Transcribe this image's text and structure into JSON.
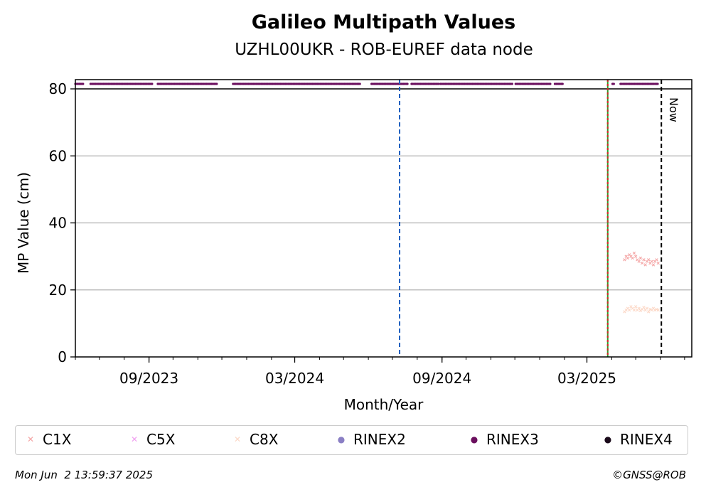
{
  "chart_data": {
    "type": "scatter",
    "title": "Galileo Multipath Values",
    "subtitle": "UZHL00UKR - ROB-EUREF data node",
    "xlabel": "Month/Year",
    "ylabel": "MP Value (cm)",
    "ylim": [
      0,
      80
    ],
    "xlim": [
      "2023-06-01",
      "2025-07-10"
    ],
    "y_ticks": [
      0,
      20,
      40,
      60,
      80
    ],
    "x_ticks": [
      {
        "date": "2023-09-01",
        "label": "09/2023"
      },
      {
        "date": "2024-03-01",
        "label": "03/2024"
      },
      {
        "date": "2024-09-01",
        "label": "09/2024"
      },
      {
        "date": "2025-03-01",
        "label": "03/2025"
      }
    ],
    "grid": "horizontal",
    "vertical_lines": [
      {
        "date": "2024-07-10",
        "style": "dashed",
        "color": "#1f5fbf"
      },
      {
        "date": "2025-03-27",
        "style": "solid",
        "color": "#2ca02c"
      },
      {
        "date": "2025-03-27",
        "style": "dotted",
        "color": "#d62728"
      },
      {
        "date": "2025-06-02",
        "style": "dashed",
        "color": "#000000",
        "label": "Now"
      }
    ],
    "rinex_band": {
      "segments": [
        {
          "start": "2023-06-01",
          "end": "2023-06-12",
          "series": "RINEX3"
        },
        {
          "start": "2023-06-20",
          "end": "2023-09-05",
          "series": "RINEX3"
        },
        {
          "start": "2023-09-12",
          "end": "2023-11-25",
          "series": "RINEX3"
        },
        {
          "start": "2023-12-15",
          "end": "2024-05-22",
          "series": "RINEX3"
        },
        {
          "start": "2024-06-05",
          "end": "2024-07-20",
          "series": "RINEX3"
        },
        {
          "start": "2024-07-25",
          "end": "2024-08-28",
          "series": "RINEX3"
        },
        {
          "start": "2024-08-30",
          "end": "2024-11-28",
          "series": "RINEX3"
        },
        {
          "start": "2024-12-02",
          "end": "2025-01-15",
          "series": "RINEX3"
        },
        {
          "start": "2025-01-20",
          "end": "2025-01-30",
          "series": "RINEX3"
        },
        {
          "start": "2025-04-02",
          "end": "2025-04-04",
          "series": "RINEX3"
        },
        {
          "start": "2025-04-12",
          "end": "2025-05-29",
          "series": "RINEX3"
        }
      ]
    },
    "series": [
      {
        "name": "C1X",
        "marker": "x",
        "color": "#f4a6a6",
        "x": [
          "2025-04-17",
          "2025-04-19",
          "2025-04-21",
          "2025-04-23",
          "2025-04-25",
          "2025-04-27",
          "2025-04-29",
          "2025-05-01",
          "2025-05-03",
          "2025-05-05",
          "2025-05-07",
          "2025-05-09",
          "2025-05-11",
          "2025-05-13",
          "2025-05-15",
          "2025-05-17",
          "2025-05-19",
          "2025-05-21",
          "2025-05-23",
          "2025-05-25",
          "2025-05-27",
          "2025-05-29"
        ],
        "y": [
          29,
          30,
          29.5,
          30.5,
          30,
          29.5,
          31,
          30,
          29,
          28.5,
          29.5,
          28,
          29,
          27.5,
          28.5,
          29,
          28,
          28.5,
          27.5,
          28.5,
          29,
          28
        ]
      },
      {
        "name": "C5X",
        "marker": "x",
        "color": "#f0a0f0",
        "x": [],
        "y": []
      },
      {
        "name": "C8X",
        "marker": "x",
        "color": "#fcd9c8",
        "x": [
          "2025-04-17",
          "2025-04-19",
          "2025-04-21",
          "2025-04-23",
          "2025-04-25",
          "2025-04-27",
          "2025-04-29",
          "2025-05-01",
          "2025-05-03",
          "2025-05-05",
          "2025-05-07",
          "2025-05-09",
          "2025-05-11",
          "2025-05-13",
          "2025-05-15",
          "2025-05-17",
          "2025-05-19",
          "2025-05-21",
          "2025-05-23",
          "2025-05-25",
          "2025-05-27",
          "2025-05-29"
        ],
        "y": [
          13.5,
          14,
          14.5,
          14,
          15,
          14.5,
          14,
          15,
          14,
          14.5,
          13.8,
          14.2,
          14.8,
          14,
          14.5,
          13.5,
          14.2,
          14,
          14.5,
          14,
          14.2,
          14
        ]
      },
      {
        "name": "RINEX2",
        "marker": "o",
        "color": "#8a7fc4",
        "x": [],
        "y": []
      },
      {
        "name": "RINEX3",
        "marker": "o",
        "color": "#6b0f5e",
        "x": [],
        "y": []
      },
      {
        "name": "RINEX4",
        "marker": "o",
        "color": "#1a0a1a",
        "x": [],
        "y": []
      }
    ]
  },
  "legend": [
    {
      "name": "C1X",
      "color": "#f4a6a6",
      "marker": "✕"
    },
    {
      "name": "C5X",
      "color": "#f0a0f0",
      "marker": "✕"
    },
    {
      "name": "C8X",
      "color": "#fcd9c8",
      "marker": "✕"
    },
    {
      "name": "RINEX2",
      "color": "#8a7fc4",
      "marker": "●"
    },
    {
      "name": "RINEX3",
      "color": "#6b0f5e",
      "marker": "●"
    },
    {
      "name": "RINEX4",
      "color": "#1a0a1a",
      "marker": "●"
    }
  ],
  "now_label": "Now",
  "footer": {
    "timestamp": "Mon Jun  2 13:59:37 2025",
    "copyright": "©GNSS@ROB"
  }
}
